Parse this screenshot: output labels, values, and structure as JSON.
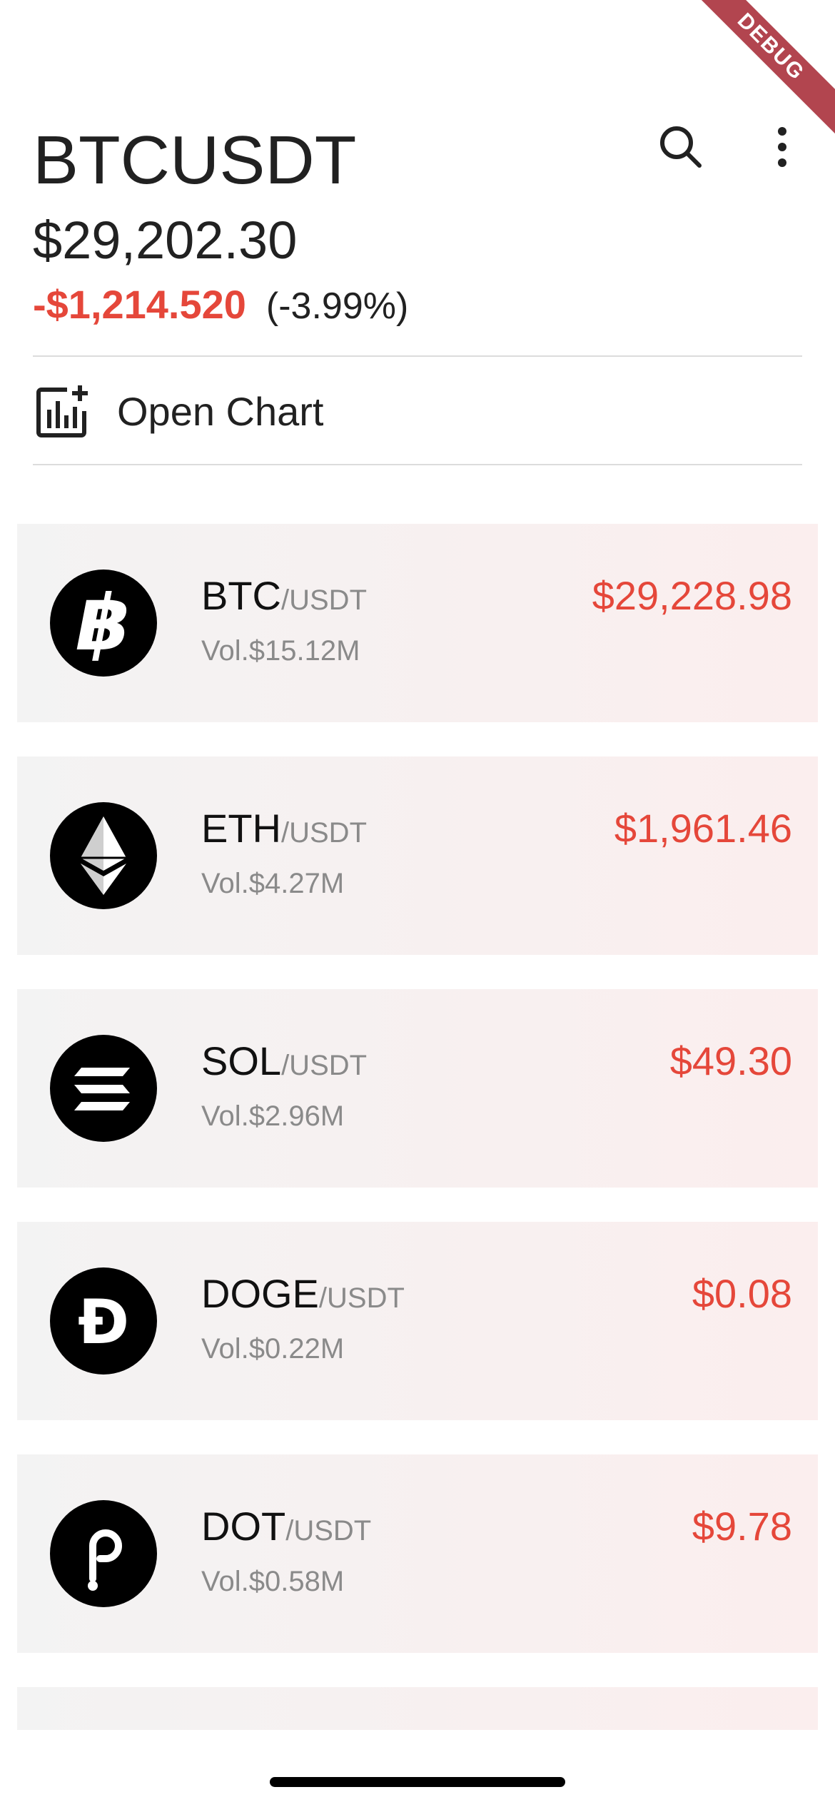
{
  "debug_banner": "DEBUG",
  "header": {
    "symbol": "BTCUSDT",
    "price": "$29,202.30",
    "change_abs": "-$1,214.520",
    "change_pct": "(-3.99%)"
  },
  "open_chart": {
    "label": "Open Chart",
    "icon": "chart-add-icon"
  },
  "icons": {
    "search": "search-icon",
    "more": "more-vertical-icon"
  },
  "colors": {
    "down": "#e5473a",
    "text": "#212121",
    "muted": "#8a8a8a"
  },
  "markets": [
    {
      "base": "BTC",
      "quote": "/USDT",
      "volume": "Vol.$15.12M",
      "price": "$29,228.98",
      "icon": "bitcoin-icon"
    },
    {
      "base": "ETH",
      "quote": "/USDT",
      "volume": "Vol.$4.27M",
      "price": "$1,961.46",
      "icon": "ethereum-icon"
    },
    {
      "base": "SOL",
      "quote": "/USDT",
      "volume": "Vol.$2.96M",
      "price": "$49.30",
      "icon": "solana-icon"
    },
    {
      "base": "DOGE",
      "quote": "/USDT",
      "volume": "Vol.$0.22M",
      "price": "$0.08",
      "icon": "dogecoin-icon"
    },
    {
      "base": "DOT",
      "quote": "/USDT",
      "volume": "Vol.$0.58M",
      "price": "$9.78",
      "icon": "polkadot-icon"
    }
  ]
}
